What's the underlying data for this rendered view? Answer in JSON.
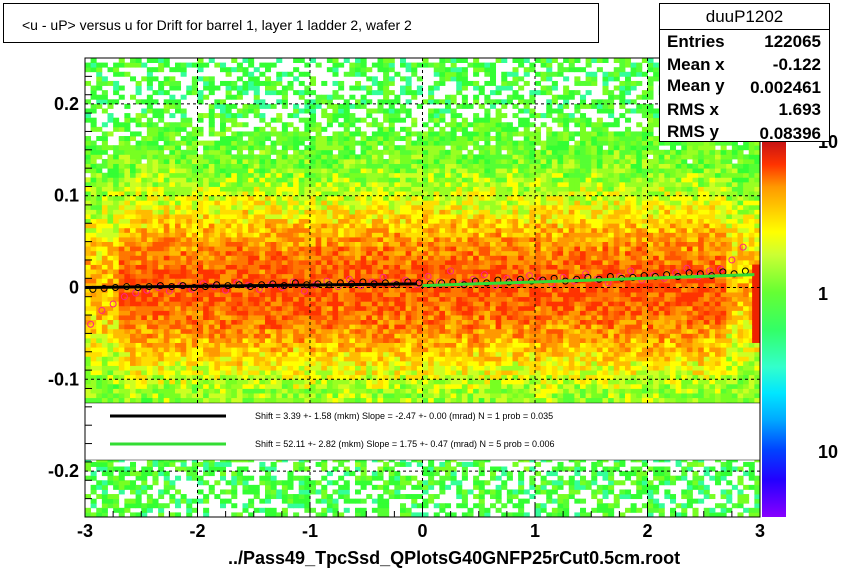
{
  "chart_data": {
    "type": "heatmap",
    "title": "<u - uP>       versus   u for Drift for barrel 1, layer 1 ladder 2, wafer 2",
    "xlim": [
      -3,
      3
    ],
    "ylim": [
      -0.25,
      0.25
    ],
    "x_ticks": [
      "-3",
      "-2",
      "-1",
      "0",
      "1",
      "2",
      "3"
    ],
    "y_ticks": [
      "0.2",
      "0.1",
      "0",
      "-0.1",
      "-0.2"
    ],
    "y_tick_values": [
      0.2,
      0.1,
      0,
      -0.1,
      -0.2
    ],
    "colorbar_labels": [
      "10",
      "1",
      "10"
    ],
    "grid": true,
    "stats": {
      "name": "duuP1202",
      "rows": [
        {
          "label": "Entries",
          "value": "122065"
        },
        {
          "label": "Mean x",
          "value": "-0.122"
        },
        {
          "label": "Mean y",
          "value": "0.002461"
        },
        {
          "label": "RMS x",
          "value": "1.693"
        },
        {
          "label": "RMS y",
          "value": "0.08396"
        }
      ]
    },
    "legend": [
      {
        "color": "#000000",
        "text": "Shift =    3.39 +- 1.58 (mkm) Slope =    -2.47 +- 0.00 (mrad)  N = 1 prob = 0.035"
      },
      {
        "color": "#33dd33",
        "text": "Shift =    52.11 +- 2.82 (mkm) Slope =     1.75 +- 0.47 (mrad)  N = 5 prob = 0.006"
      }
    ],
    "fits": [
      {
        "color": "#000000",
        "x": [
          -3.0,
          -0.05
        ],
        "y": [
          0.0,
          0.004
        ]
      },
      {
        "color": "#33dd33",
        "x": [
          0.0,
          2.95
        ],
        "y": [
          0.002,
          0.014
        ]
      }
    ],
    "profile_points": {
      "x": [
        -2.95,
        -2.85,
        -2.75,
        -2.65,
        -2.55,
        -2.45,
        -2.35,
        -2.25,
        -2.15,
        -2.05,
        -1.95,
        -1.85,
        -1.75,
        -1.65,
        -1.55,
        -1.45,
        -1.35,
        -1.25,
        -1.15,
        -1.05,
        -0.95,
        -0.85,
        -0.75,
        -0.65,
        -0.55,
        -0.45,
        -0.35,
        -0.25,
        -0.15,
        -0.05,
        0.05,
        0.15,
        0.25,
        0.35,
        0.45,
        0.55,
        0.65,
        0.75,
        0.85,
        0.95,
        1.05,
        1.15,
        1.25,
        1.35,
        1.45,
        1.55,
        1.65,
        1.75,
        1.85,
        1.95,
        2.05,
        2.15,
        2.25,
        2.35,
        2.45,
        2.55,
        2.65,
        2.75,
        2.85
      ],
      "y_black": [
        -0.002,
        -0.001,
        0.0,
        0.001,
        0.0,
        0.001,
        0.002,
        0.001,
        0.002,
        0.0,
        0.001,
        0.003,
        0.002,
        0.003,
        0.001,
        0.003,
        0.004,
        0.002,
        0.005,
        0.003,
        0.004,
        0.003,
        0.005,
        0.004,
        0.006,
        0.004,
        0.005,
        0.003,
        0.006,
        0.005,
        0.004,
        0.005,
        0.006,
        0.003,
        0.007,
        0.005,
        0.008,
        0.006,
        0.009,
        0.007,
        0.008,
        0.01,
        0.007,
        0.009,
        0.011,
        0.009,
        0.012,
        0.01,
        0.011,
        0.013,
        0.012,
        0.014,
        0.012,
        0.016,
        0.015,
        0.013,
        0.017,
        0.015,
        0.018
      ],
      "y_red": [
        -0.04,
        -0.025,
        -0.018,
        -0.01,
        -0.006,
        -0.003,
        0.0,
        -0.004,
        0.002,
        -0.002,
        0.004,
        0.001,
        -0.003,
        0.005,
        0.002,
        -0.002,
        0.003,
        0.0,
        0.006,
        -0.004,
        0.003,
        0.007,
        0.001,
        0.009,
        0.002,
        0.006,
        0.011,
        0.004,
        0.008,
        0.003,
        0.012,
        0.006,
        0.018,
        0.004,
        0.009,
        0.014,
        0.002,
        0.01,
        0.006,
        0.013,
        0.008,
        0.004,
        0.011,
        0.007,
        0.015,
        0.009,
        0.005,
        0.012,
        0.018,
        0.008,
        0.013,
        0.01,
        0.016,
        0.021,
        0.012,
        0.018,
        0.02,
        0.03,
        0.044
      ]
    }
  },
  "footer": "../Pass49_TpcSsd_QPlotsG40GNFP25rCut0.5cm.root"
}
